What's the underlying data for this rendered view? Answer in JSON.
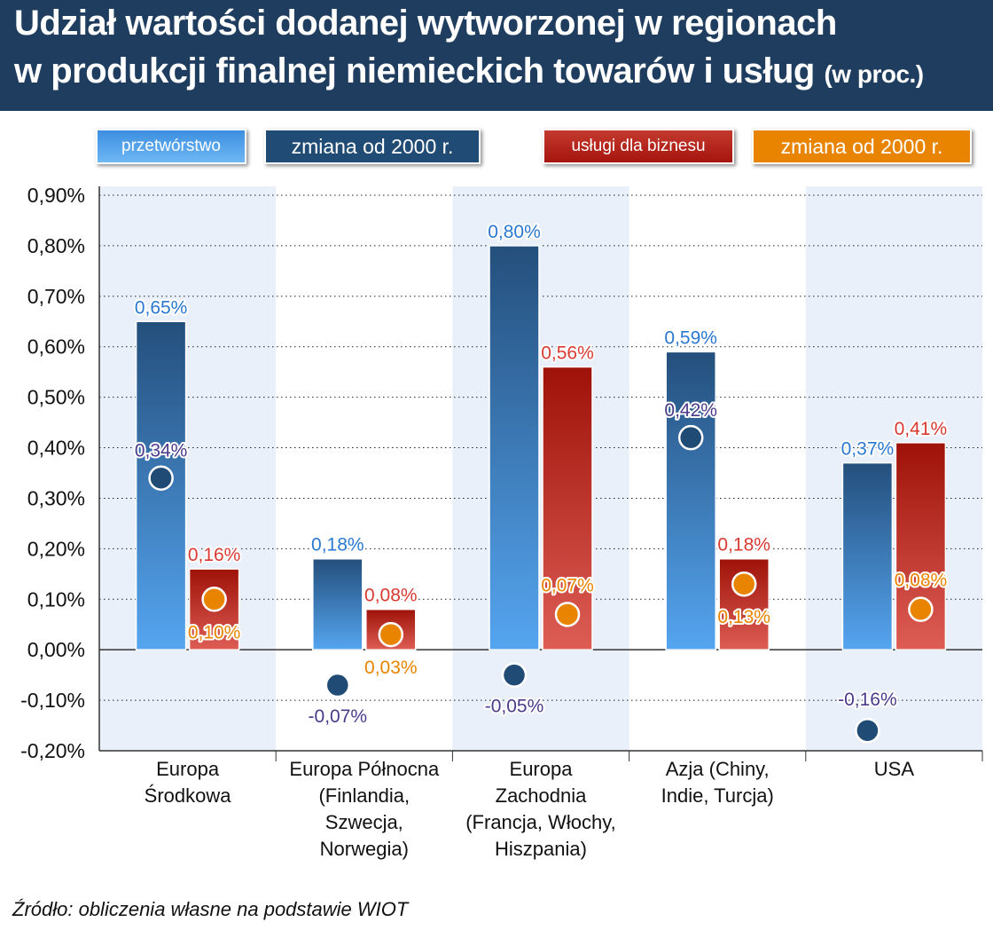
{
  "title": {
    "line1": "Udział wartości dodanej wytworzonej w regionach",
    "line2": "w produkcji finalnej niemieckich towarów i usług",
    "unit": "(w proc.)"
  },
  "legend": [
    {
      "label": "przetwórstwo",
      "color": "#3a8ee0"
    },
    {
      "label": "zmiana od 2000 r.",
      "color": "#1f4b74"
    },
    {
      "label": "usługi dla biznesu",
      "color": "#b8261c"
    },
    {
      "label": "zmiana od 2000 r.",
      "color": "#e98400"
    }
  ],
  "source": "Źródło: obliczenia własne na podstawie WIOT",
  "chart_data": {
    "type": "bar",
    "categories": [
      [
        "Europa",
        "Środkowa"
      ],
      [
        "Europa Północna",
        "(Finlandia,",
        "Szwecja,",
        "Norwegia)"
      ],
      [
        "Europa",
        "Zachodnia",
        "(Francja, Włochy,",
        "Hiszpania)"
      ],
      [
        "Azja (Chiny,",
        "Indie, Turcja)"
      ],
      [
        "USA"
      ]
    ],
    "series": [
      {
        "name": "przetwórstwo",
        "kind": "bar",
        "values": [
          0.65,
          0.18,
          0.8,
          0.59,
          0.37
        ],
        "labels": [
          "0,65%",
          "0,18%",
          "0,80%",
          "0,59%",
          "0,37%"
        ]
      },
      {
        "name": "usługi dla biznesu",
        "kind": "bar",
        "values": [
          0.16,
          0.08,
          0.56,
          0.18,
          0.41
        ],
        "labels": [
          "0,16%",
          "0,08%",
          "0,56%",
          "0,18%",
          "0,41%"
        ]
      },
      {
        "name": "zmiana od 2000 r.",
        "kind": "point",
        "ref": "przetwórstwo",
        "values": [
          0.34,
          -0.07,
          -0.05,
          0.42,
          -0.16
        ],
        "labels": [
          "0,34%",
          "-0,07%",
          "-0,05%",
          "0,42%",
          "-0,16%"
        ]
      },
      {
        "name": "zmiana od 2000 r.",
        "kind": "point",
        "ref": "usługi dla biznesu",
        "values": [
          0.1,
          0.03,
          0.07,
          0.13,
          0.08
        ],
        "labels": [
          "0,10%",
          "0,03%",
          "0,07%",
          "0,13%",
          "0,08%"
        ]
      }
    ],
    "yticks": [
      0.9,
      0.8,
      0.7,
      0.6,
      0.5,
      0.4,
      0.3,
      0.2,
      0.1,
      0.0,
      -0.1,
      -0.2
    ],
    "ytick_labels": [
      "0,90%",
      "0,80%",
      "0,70%",
      "0,60%",
      "0,50%",
      "0,40%",
      "0,30%",
      "0,20%",
      "0,10%",
      "0,00%",
      "-0,10%",
      "-0,20%"
    ],
    "ylim": [
      -0.2,
      0.9
    ],
    "grid": true,
    "legend_position": "top"
  },
  "colors": {
    "header_bg": "#1f3d5f",
    "bar_manufacturing_top": "#244f7c",
    "bar_manufacturing_bottom": "#55a5f0",
    "bar_services_top": "#9e1208",
    "bar_services_bottom": "#dd5d55",
    "dot_manufacturing": "#1f4b74",
    "dot_services": "#e98400",
    "label_manufacturing": "#2a78d0",
    "label_services": "#d83a32",
    "label_change_manufacturing": "#4a3a8a",
    "label_change_services": "#e98400",
    "band": "#e9f0f9"
  }
}
